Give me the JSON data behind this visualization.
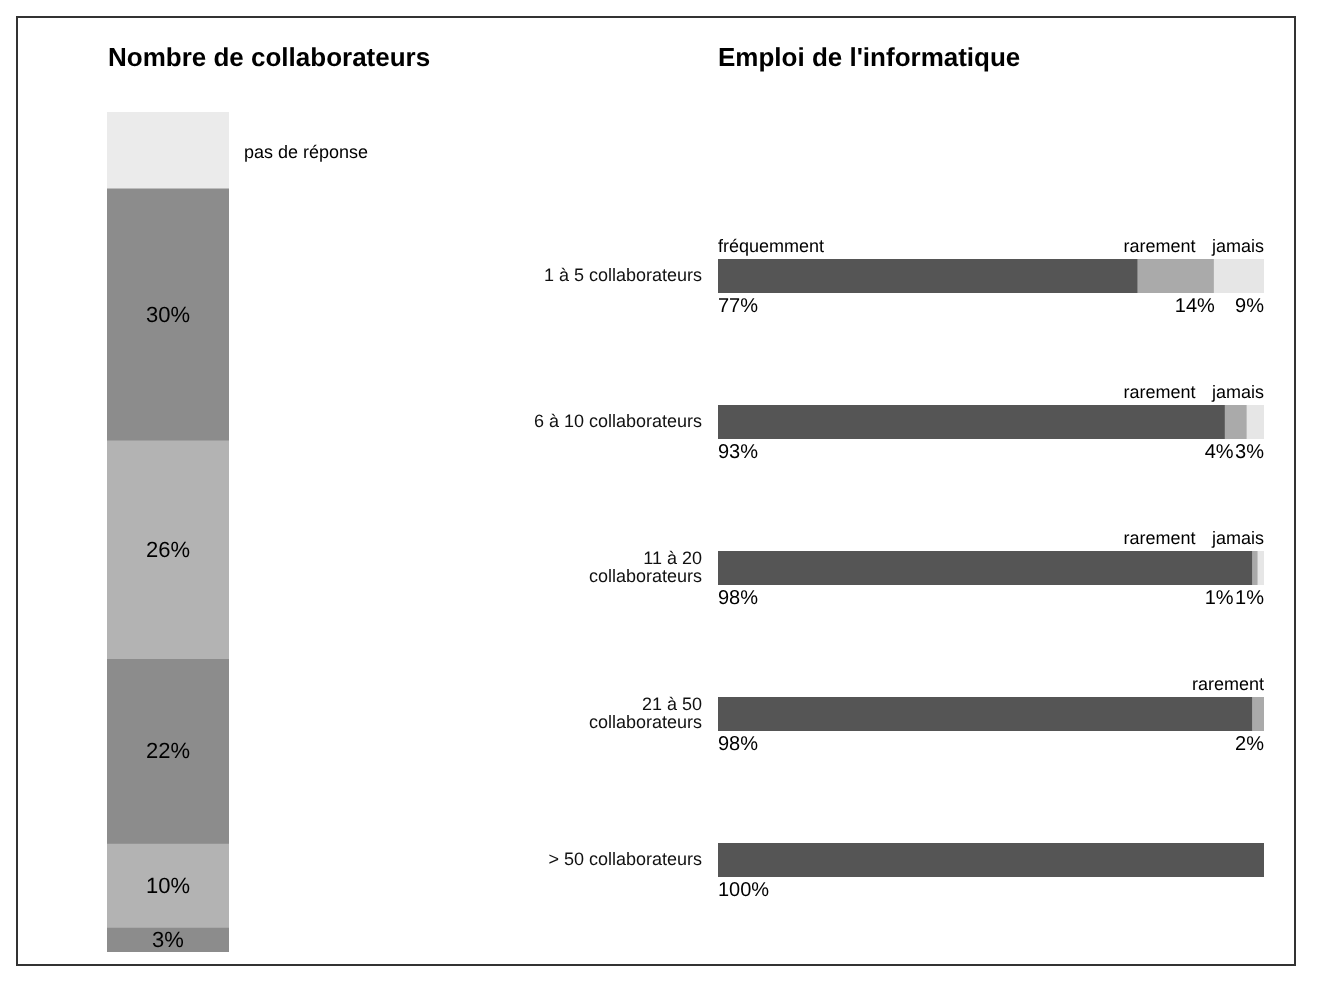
{
  "chart_data": [
    {
      "type": "bar",
      "title": "Nombre de collaborateurs",
      "stacked": true,
      "categories": [
        null
      ],
      "series": [
        {
          "color": "#8c8c8c",
          "values": [
            3
          ],
          "value_labels": [
            "3%"
          ]
        },
        {
          "color": "#b3b3b3",
          "values": [
            10
          ],
          "value_labels": [
            "10%"
          ]
        },
        {
          "color": "#8c8c8c",
          "values": [
            22
          ],
          "value_labels": [
            "22%"
          ]
        },
        {
          "color": "#b3b3b3",
          "values": [
            26
          ],
          "value_labels": [
            "26%"
          ]
        },
        {
          "color": "#8c8c8c",
          "values": [
            30
          ],
          "value_labels": [
            "30%"
          ]
        },
        {
          "name": "pas de réponse",
          "color": "#ebebeb",
          "values": [
            9
          ],
          "value_labels": [
            null
          ]
        }
      ]
    },
    {
      "type": "bar",
      "title": "Emploi de l'informatique",
      "orientation": "horizontal",
      "stacked": true,
      "categories": [
        "1 à 5 collaborateurs",
        "6 à 10 collaborateurs",
        "11 à 20 collaborateurs",
        "21 à 50 collaborateurs",
        "> 50 collaborateurs"
      ],
      "series": [
        {
          "name": "fréquemment",
          "color": "#555555",
          "values": [
            77,
            93,
            98,
            98,
            100
          ],
          "value_labels": [
            "77%",
            "93%",
            "98%",
            "98%",
            "100%"
          ]
        },
        {
          "name": "rarement",
          "color": "#aaaaaa",
          "values": [
            14,
            4,
            1,
            2,
            0
          ],
          "value_labels": [
            "14%",
            "4%",
            "1%",
            "2%",
            null
          ]
        },
        {
          "name": "jamais",
          "color": "#e6e6e6",
          "values": [
            9,
            3,
            1,
            0,
            0
          ],
          "value_labels": [
            "9%",
            "3%",
            "1%",
            null,
            null
          ]
        }
      ]
    }
  ]
}
